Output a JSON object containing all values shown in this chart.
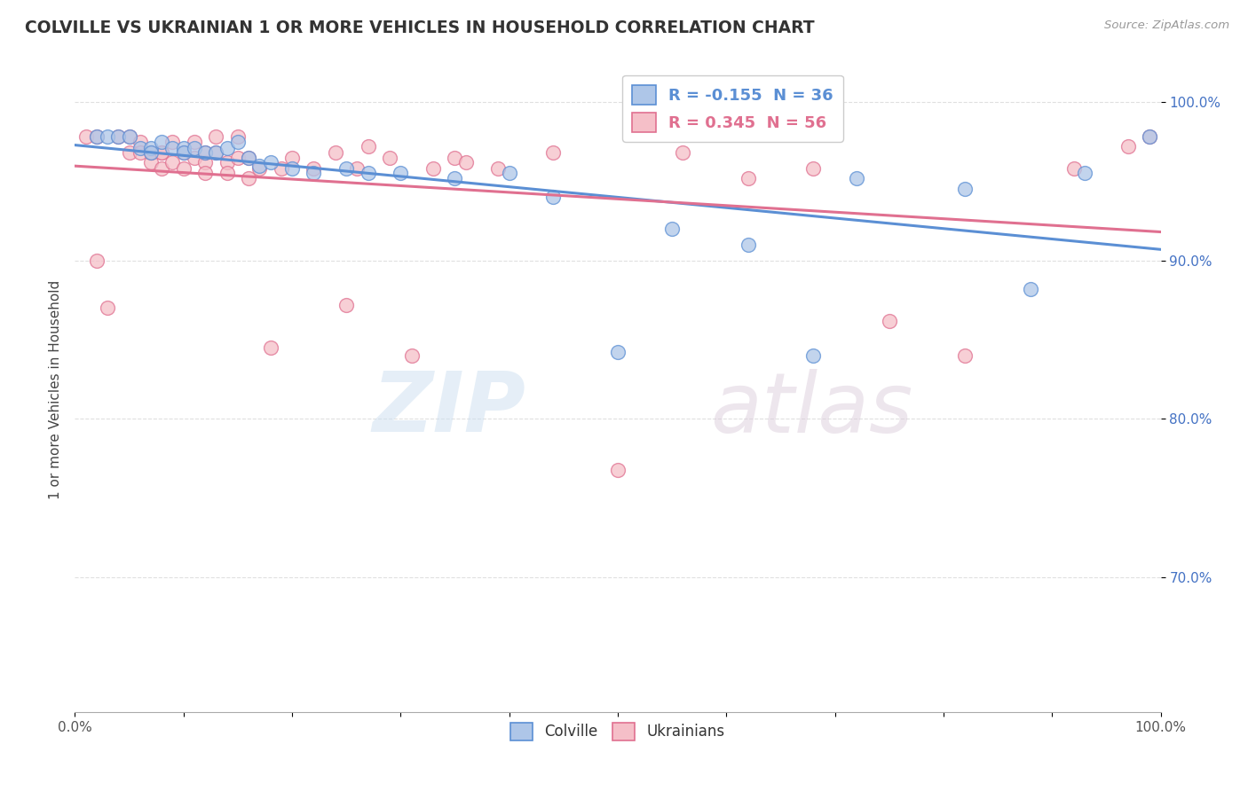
{
  "title": "COLVILLE VS UKRAINIAN 1 OR MORE VEHICLES IN HOUSEHOLD CORRELATION CHART",
  "source": "Source: ZipAtlas.com",
  "ylabel": "1 or more Vehicles in Household",
  "watermark_zip": "ZIP",
  "watermark_atlas": "atlas",
  "colville_R": -0.155,
  "colville_N": 36,
  "ukrainian_R": 0.345,
  "ukrainian_N": 56,
  "colville_color": "#aec6e8",
  "colville_edge_color": "#5b8fd4",
  "ukrainian_color": "#f5bfc8",
  "ukrainian_edge_color": "#e07090",
  "background_color": "#ffffff",
  "xlim": [
    0.0,
    1.0
  ],
  "ylim": [
    0.615,
    1.022
  ],
  "yticks": [
    0.7,
    0.8,
    0.9,
    1.0
  ],
  "ytick_labels": [
    "70.0%",
    "80.0%",
    "90.0%",
    "100.0%"
  ],
  "grid_color": "#e0e0e0",
  "colville_x": [
    0.02,
    0.03,
    0.04,
    0.05,
    0.06,
    0.07,
    0.07,
    0.08,
    0.09,
    0.1,
    0.1,
    0.11,
    0.12,
    0.13,
    0.14,
    0.15,
    0.16,
    0.17,
    0.18,
    0.2,
    0.22,
    0.25,
    0.27,
    0.3,
    0.35,
    0.4,
    0.44,
    0.5,
    0.55,
    0.62,
    0.68,
    0.72,
    0.82,
    0.88,
    0.93,
    0.99
  ],
  "colville_y": [
    0.978,
    0.978,
    0.978,
    0.978,
    0.971,
    0.971,
    0.968,
    0.975,
    0.971,
    0.971,
    0.968,
    0.971,
    0.968,
    0.968,
    0.971,
    0.975,
    0.965,
    0.96,
    0.962,
    0.958,
    0.955,
    0.958,
    0.955,
    0.955,
    0.952,
    0.955,
    0.94,
    0.842,
    0.92,
    0.91,
    0.84,
    0.952,
    0.945,
    0.882,
    0.955,
    0.978
  ],
  "ukrainian_x": [
    0.01,
    0.02,
    0.02,
    0.03,
    0.04,
    0.05,
    0.05,
    0.06,
    0.06,
    0.07,
    0.07,
    0.08,
    0.08,
    0.08,
    0.09,
    0.09,
    0.1,
    0.1,
    0.11,
    0.11,
    0.12,
    0.12,
    0.12,
    0.13,
    0.13,
    0.14,
    0.14,
    0.15,
    0.15,
    0.16,
    0.16,
    0.17,
    0.18,
    0.19,
    0.2,
    0.22,
    0.24,
    0.25,
    0.26,
    0.27,
    0.29,
    0.31,
    0.33,
    0.35,
    0.36,
    0.39,
    0.44,
    0.5,
    0.56,
    0.62,
    0.68,
    0.75,
    0.82,
    0.92,
    0.97,
    0.99
  ],
  "ukrainian_y": [
    0.978,
    0.9,
    0.978,
    0.87,
    0.978,
    0.968,
    0.978,
    0.975,
    0.968,
    0.962,
    0.968,
    0.968,
    0.958,
    0.968,
    0.975,
    0.962,
    0.968,
    0.958,
    0.965,
    0.975,
    0.962,
    0.955,
    0.968,
    0.968,
    0.978,
    0.962,
    0.955,
    0.965,
    0.978,
    0.965,
    0.952,
    0.958,
    0.845,
    0.958,
    0.965,
    0.958,
    0.968,
    0.872,
    0.958,
    0.972,
    0.965,
    0.84,
    0.958,
    0.965,
    0.962,
    0.958,
    0.968,
    0.768,
    0.968,
    0.952,
    0.958,
    0.862,
    0.84,
    0.958,
    0.972,
    0.978
  ]
}
